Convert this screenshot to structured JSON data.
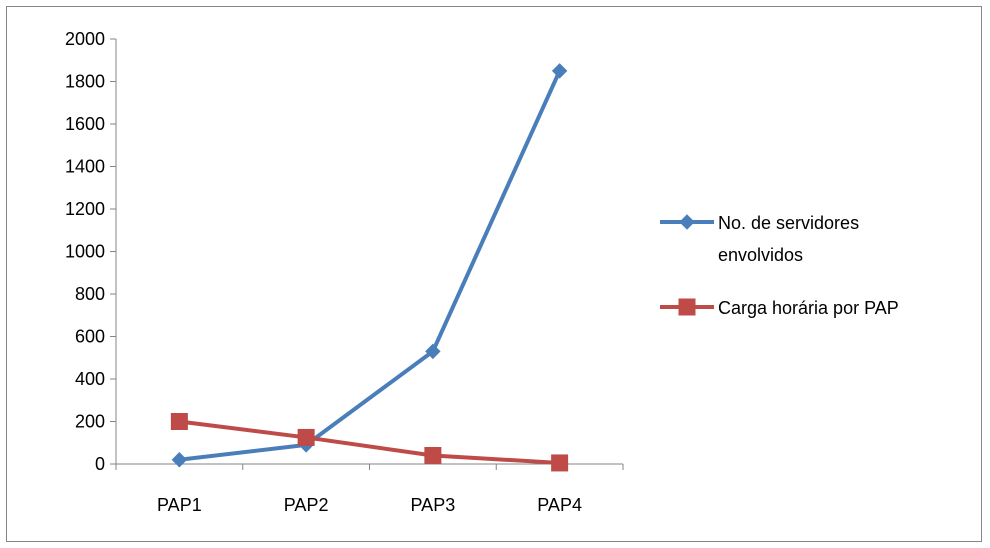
{
  "chart_data": {
    "type": "line",
    "categories": [
      "PAP1",
      "PAP2",
      "PAP3",
      "PAP4"
    ],
    "ylim": [
      0,
      2000
    ],
    "yticks": [
      0,
      200,
      400,
      600,
      800,
      1000,
      1200,
      1400,
      1600,
      1800,
      2000
    ],
    "grid": false,
    "legend_position": "right",
    "series": [
      {
        "name_lines": [
          "No. de servidores",
          "envolvidos"
        ],
        "values": [
          20,
          90,
          530,
          1850
        ],
        "color": "#4a7ebb",
        "marker": "diamond"
      },
      {
        "name_lines": [
          "Carga horária por PAP"
        ],
        "values": [
          200,
          125,
          40,
          5
        ],
        "color": "#be4b48",
        "marker": "square"
      }
    ]
  }
}
